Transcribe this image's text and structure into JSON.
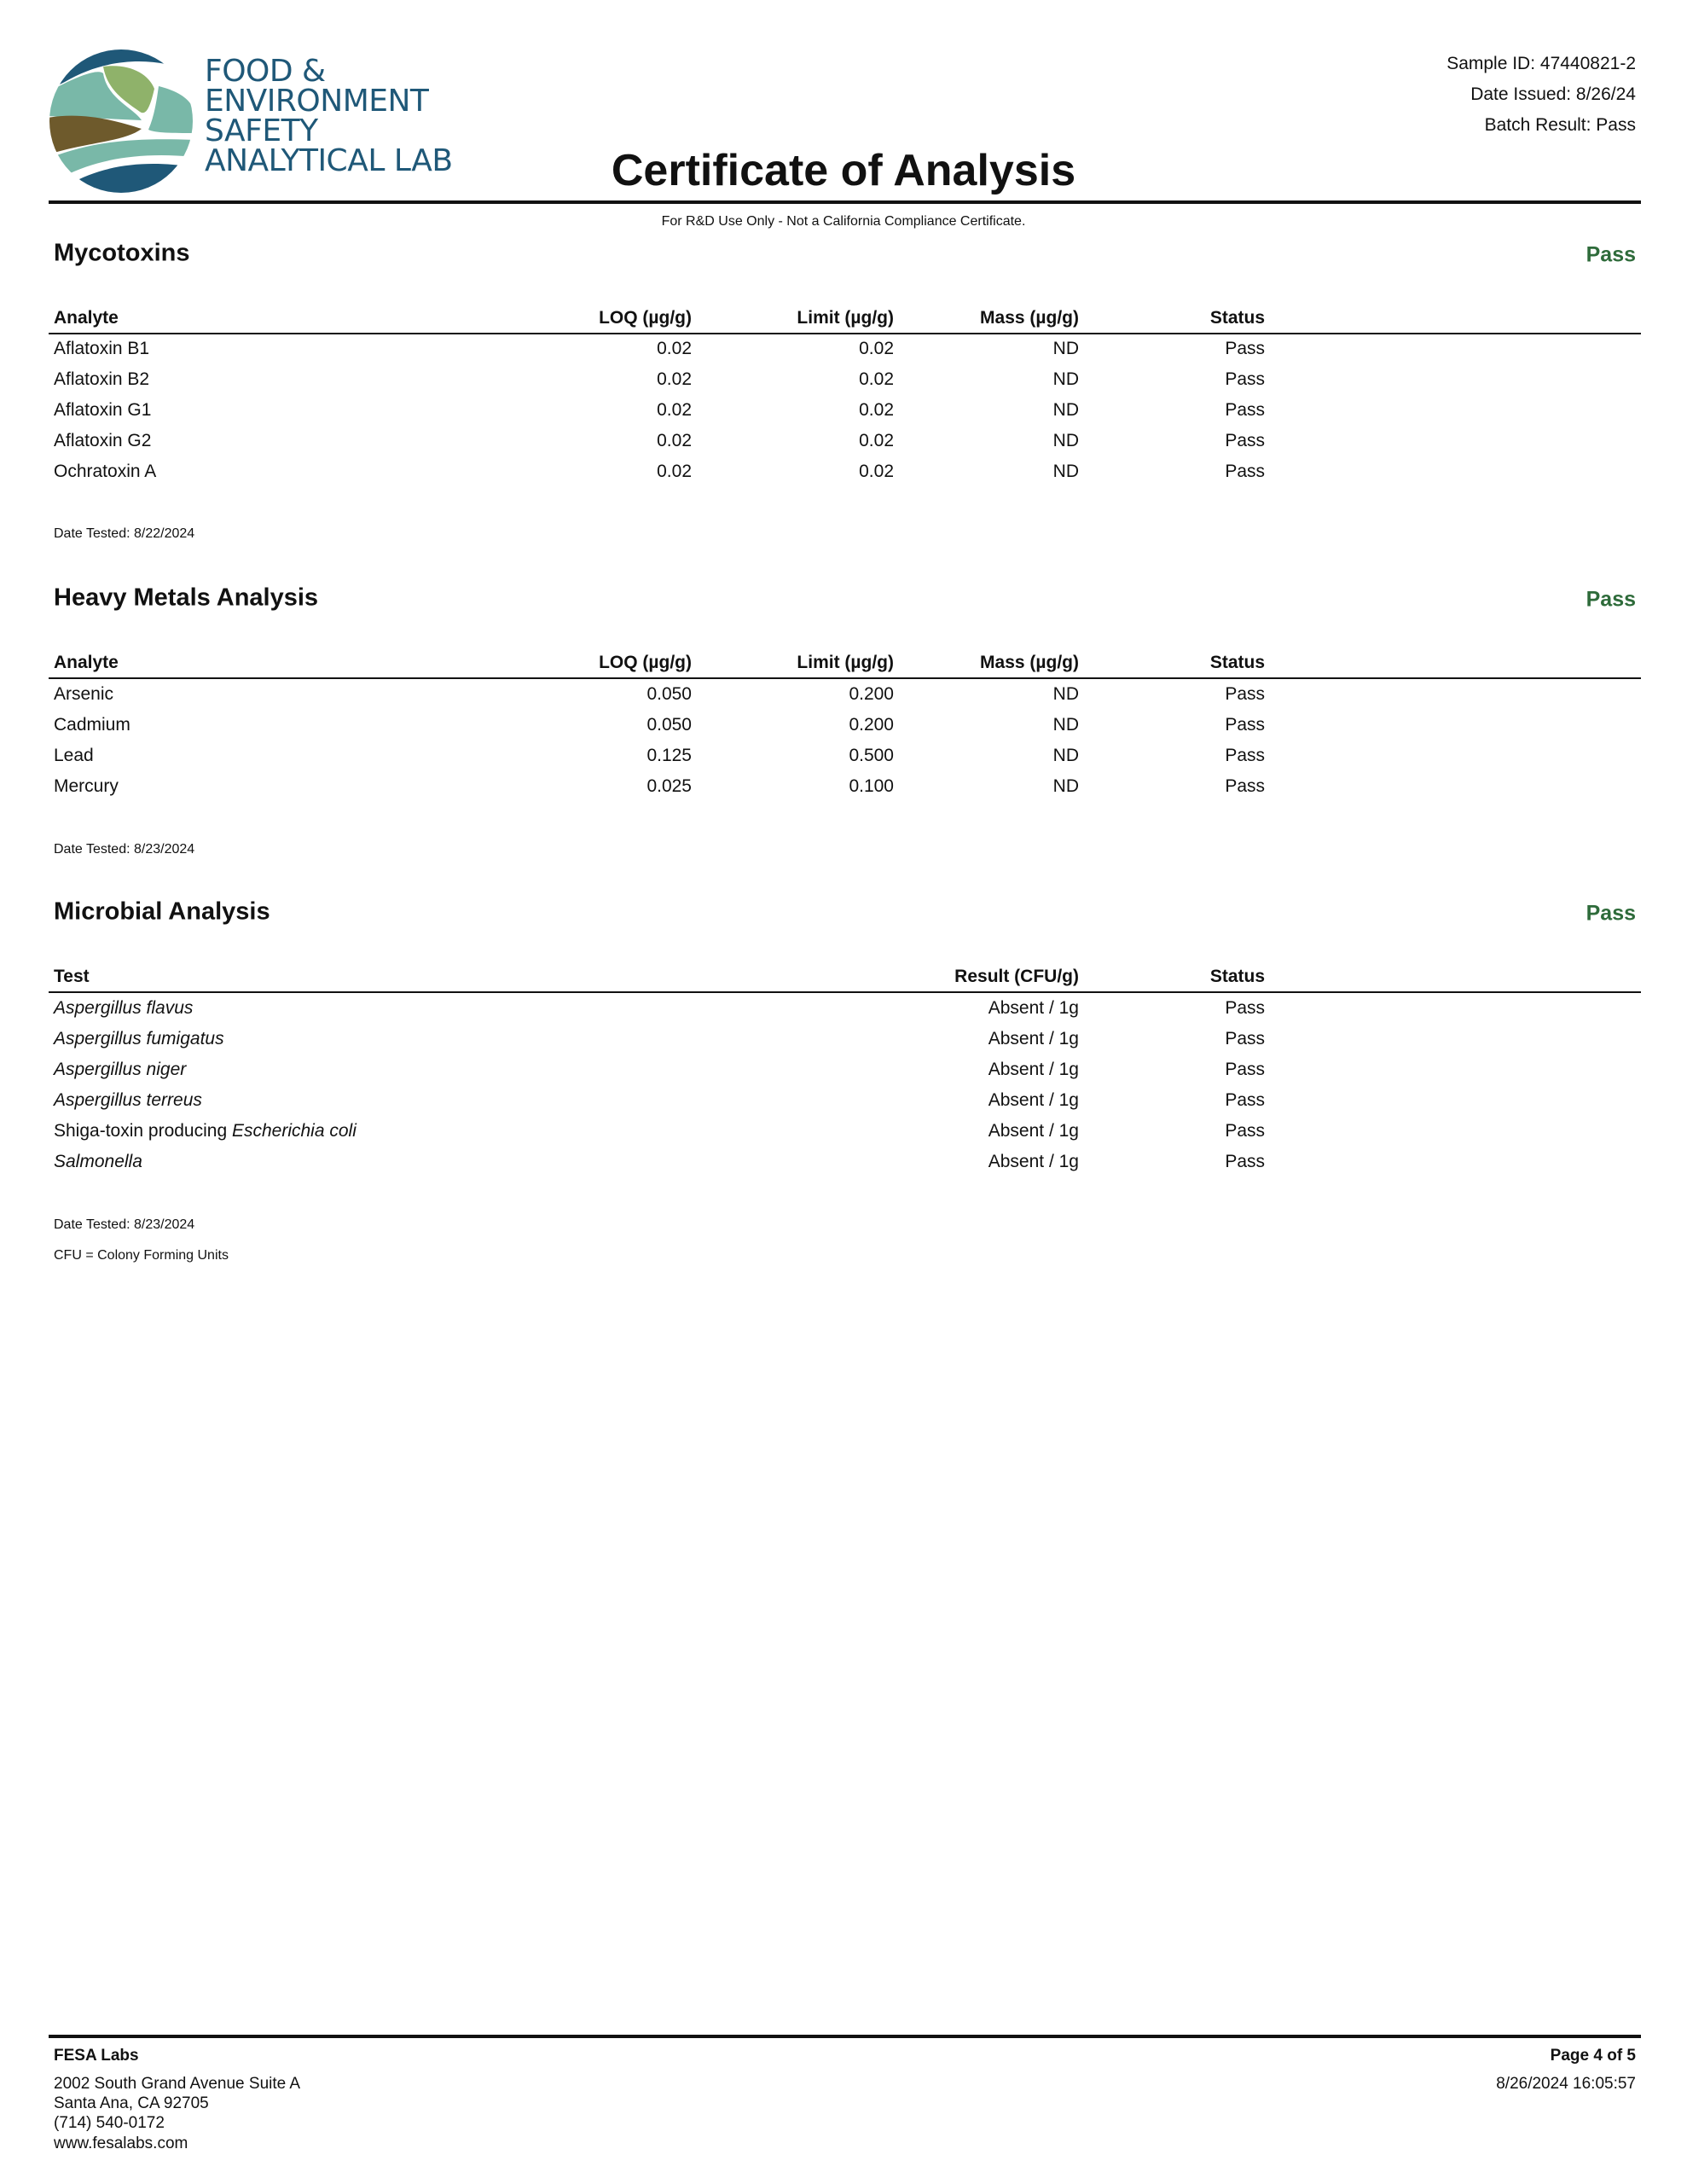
{
  "logo": {
    "lines": [
      "FOOD &",
      "ENVIRONMENT",
      "SAFETY",
      "ANALYTICAL LAB"
    ],
    "colors": {
      "navy": "#1f5878",
      "teal": "#79b8a8",
      "green": "#8fb26a",
      "brown": "#6e5a2c"
    }
  },
  "header": {
    "title": "Certificate of Analysis",
    "sample_id": "Sample ID: 47440821-2",
    "date_issued": "Date Issued: 8/26/24",
    "batch_result": "Batch Result: Pass",
    "disclaimer": "For R&D Use Only - Not a California Compliance Certificate."
  },
  "colors": {
    "pass": "#2e6b3a"
  },
  "sections": [
    {
      "title": "Mycotoxins",
      "result": "Pass",
      "columns": [
        "Analyte",
        "LOQ (µg/g)",
        "Limit (µg/g)",
        "Mass (µg/g)",
        "Status"
      ],
      "rows": [
        [
          "Aflatoxin B1",
          "0.02",
          "0.02",
          "ND",
          "Pass"
        ],
        [
          "Aflatoxin B2",
          "0.02",
          "0.02",
          "ND",
          "Pass"
        ],
        [
          "Aflatoxin G1",
          "0.02",
          "0.02",
          "ND",
          "Pass"
        ],
        [
          "Aflatoxin G2",
          "0.02",
          "0.02",
          "ND",
          "Pass"
        ],
        [
          "Ochratoxin A",
          "0.02",
          "0.02",
          "ND",
          "Pass"
        ]
      ],
      "notes": [
        "Date Tested: 8/22/2024"
      ]
    },
    {
      "title": "Heavy Metals Analysis",
      "result": "Pass",
      "columns": [
        "Analyte",
        "LOQ (µg/g)",
        "Limit (µg/g)",
        "Mass (µg/g)",
        "Status"
      ],
      "rows": [
        [
          "Arsenic",
          "0.050",
          "0.200",
          "ND",
          "Pass"
        ],
        [
          "Cadmium",
          "0.050",
          "0.200",
          "ND",
          "Pass"
        ],
        [
          "Lead",
          "0.125",
          "0.500",
          "ND",
          "Pass"
        ],
        [
          "Mercury",
          "0.025",
          "0.100",
          "ND",
          "Pass"
        ]
      ],
      "notes": [
        "Date Tested: 8/23/2024"
      ]
    },
    {
      "title": "Microbial Analysis",
      "result": "Pass",
      "columns": [
        "Test",
        "Result (CFU/g)",
        "Status"
      ],
      "rows": [
        {
          "test": [
            {
              "text": "Aspergillus flavus",
              "italic": true
            }
          ],
          "result": "Absent / 1g",
          "status": "Pass"
        },
        {
          "test": [
            {
              "text": "Aspergillus fumigatus",
              "italic": true
            }
          ],
          "result": "Absent / 1g",
          "status": "Pass"
        },
        {
          "test": [
            {
              "text": "Aspergillus niger",
              "italic": true
            }
          ],
          "result": "Absent / 1g",
          "status": "Pass"
        },
        {
          "test": [
            {
              "text": "Aspergillus terreus",
              "italic": true
            }
          ],
          "result": "Absent / 1g",
          "status": "Pass"
        },
        {
          "test": [
            {
              "text": "Shiga-toxin producing ",
              "italic": false
            },
            {
              "text": "Escherichia coli",
              "italic": true
            }
          ],
          "result": "Absent / 1g",
          "status": "Pass"
        },
        {
          "test": [
            {
              "text": "Salmonella",
              "italic": true
            }
          ],
          "result": "Absent / 1g",
          "status": "Pass"
        }
      ],
      "notes": [
        "Date Tested: 8/23/2024",
        "CFU = Colony Forming Units"
      ]
    }
  ],
  "footer": {
    "company": "FESA Labs",
    "address": [
      "2002 South Grand Avenue Suite A",
      "Santa Ana, CA 92705",
      "(714) 540-0172",
      "www.fesalabs.com"
    ],
    "page": "Page 4 of 5",
    "timestamp": "8/26/2024 16:05:57"
  }
}
